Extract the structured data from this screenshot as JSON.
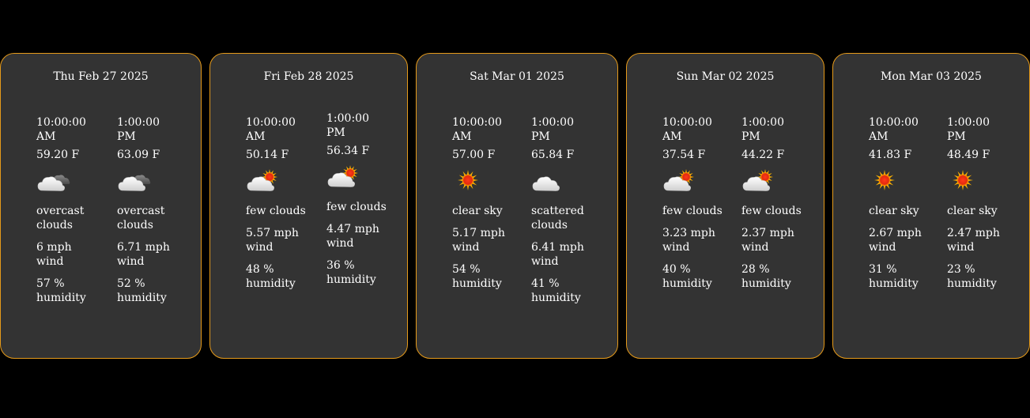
{
  "days": [
    {
      "date": "Thu Feb 27 2025",
      "slots": [
        {
          "time": "10:00:00 AM",
          "temp": "59.20 F",
          "icon": "overcast-clouds-icon",
          "desc": "overcast clouds",
          "wind": "6 mph wind",
          "humidity": "57 % humidity"
        },
        {
          "time": "1:00:00 PM",
          "temp": "63.09 F",
          "icon": "overcast-clouds-icon",
          "desc": "overcast clouds",
          "wind": "6.71 mph wind",
          "humidity": "52 % humidity"
        }
      ]
    },
    {
      "date": "Fri Feb 28 2025",
      "slots": [
        {
          "time": "10:00:00 AM",
          "temp": "50.14 F",
          "icon": "few-clouds-icon",
          "desc": "few clouds",
          "wind": "5.57 mph wind",
          "humidity": "48 % humidity"
        },
        {
          "time": "1:00:00 PM",
          "temp": "56.34 F",
          "icon": "few-clouds-icon",
          "desc": "few clouds",
          "wind": "4.47 mph wind",
          "humidity": "36 % humidity"
        }
      ]
    },
    {
      "date": "Sat Mar 01 2025",
      "slots": [
        {
          "time": "10:00:00 AM",
          "temp": "57.00 F",
          "icon": "clear-sky-icon",
          "desc": "clear sky",
          "wind": "5.17 mph wind",
          "humidity": "54 % humidity"
        },
        {
          "time": "1:00:00 PM",
          "temp": "65.84 F",
          "icon": "scattered-clouds-icon",
          "desc": "scattered clouds",
          "wind": "6.41 mph wind",
          "humidity": "41 % humidity"
        }
      ]
    },
    {
      "date": "Sun Mar 02 2025",
      "slots": [
        {
          "time": "10:00:00 AM",
          "temp": "37.54 F",
          "icon": "few-clouds-icon",
          "desc": "few clouds",
          "wind": "3.23 mph wind",
          "humidity": "40 % humidity"
        },
        {
          "time": "1:00:00 PM",
          "temp": "44.22 F",
          "icon": "few-clouds-icon",
          "desc": "few clouds",
          "wind": "2.37 mph wind",
          "humidity": "28 % humidity"
        }
      ]
    },
    {
      "date": "Mon Mar 03 2025",
      "slots": [
        {
          "time": "10:00:00 AM",
          "temp": "41.83 F",
          "icon": "clear-sky-icon",
          "desc": "clear sky",
          "wind": "2.67 mph wind",
          "humidity": "31 % humidity"
        },
        {
          "time": "1:00:00 PM",
          "temp": "48.49 F",
          "icon": "clear-sky-icon",
          "desc": "clear sky",
          "wind": "2.47 mph wind",
          "humidity": "23 % humidity"
        }
      ]
    }
  ],
  "colors": {
    "background": "#000000",
    "card": "#333333",
    "border": "#e59a1a",
    "text": "#ffffff"
  }
}
